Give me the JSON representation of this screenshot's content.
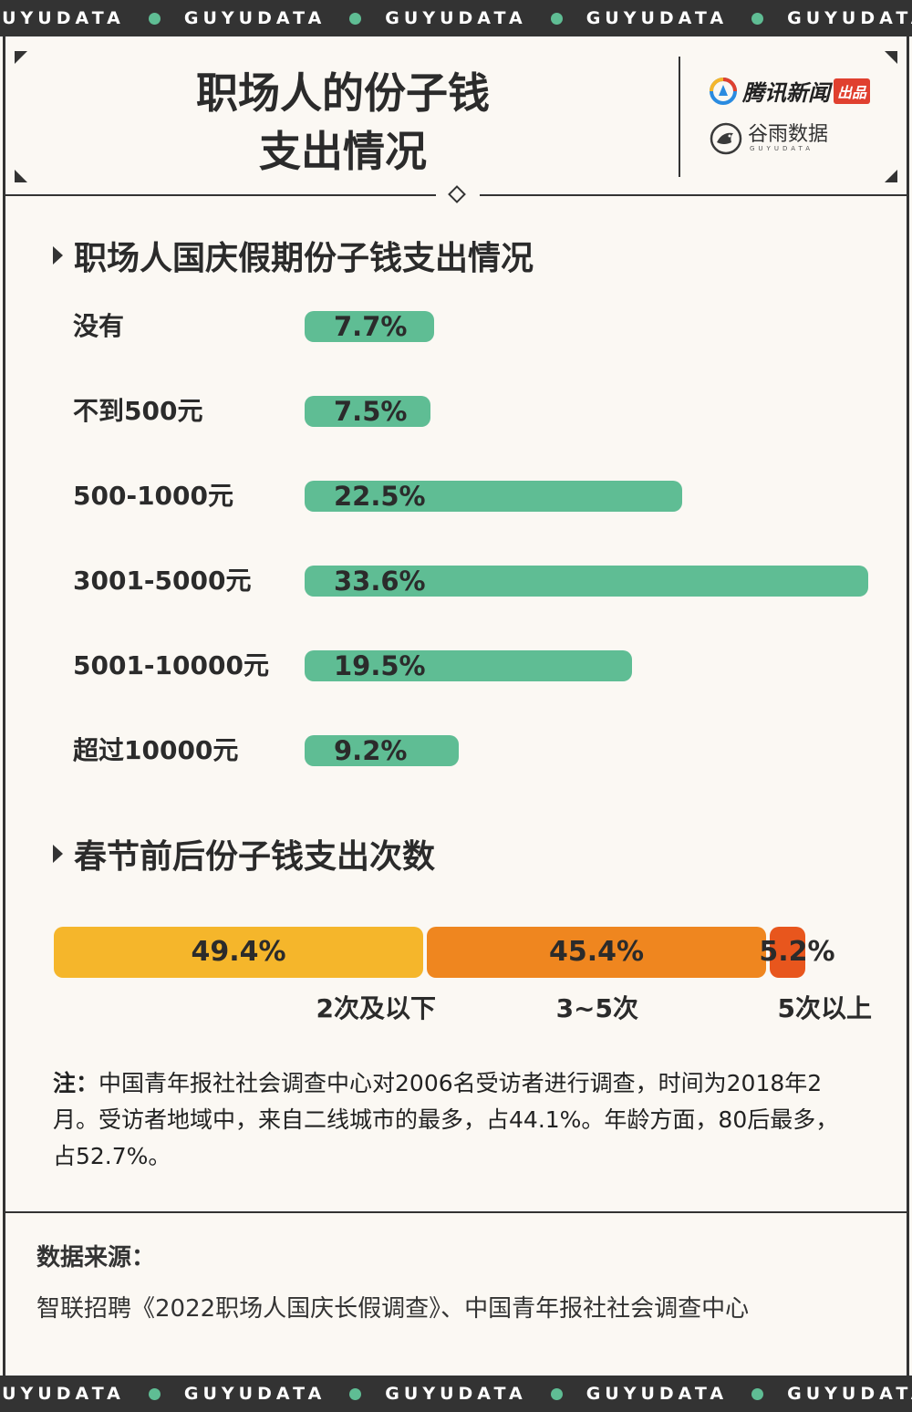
{
  "ribbon": {
    "words": [
      "GUYUDATA",
      "GUYUDATA",
      "GUYUDATA",
      "GUYUDATA",
      "GUYUDATA"
    ],
    "dot_color": "#5fbd94"
  },
  "header": {
    "title_line1": "职场人的份子钱",
    "title_line2": "支出情况",
    "brand1_name": "腾讯新闻",
    "brand1_tag": "出品",
    "brand2_name": "谷雨数据",
    "brand2_sub": "GUYUDATA"
  },
  "section1": {
    "title": "职场人国庆假期份子钱支出情况"
  },
  "section2": {
    "title": "春节前后份子钱支出次数"
  },
  "chart_data": [
    {
      "type": "bar",
      "title": "职场人国庆假期份子钱支出情况",
      "categories": [
        "没有",
        "不到500元",
        "500-1000元",
        "3001-5000元",
        "5001-10000元",
        "超过10000元"
      ],
      "values": [
        7.7,
        7.5,
        22.5,
        33.6,
        19.5,
        9.2
      ],
      "value_labels": [
        "7.7%",
        "7.5%",
        "22.5%",
        "33.6%",
        "19.5%",
        "9.2%"
      ],
      "color": "#5fbd94",
      "orientation": "horizontal"
    },
    {
      "type": "bar",
      "stacked": true,
      "title": "春节前后份子钱支出次数",
      "categories": [
        "2次及以下",
        "3~5次",
        "5次以上"
      ],
      "values": [
        49.4,
        45.4,
        5.2
      ],
      "value_labels": [
        "49.4%",
        "45.4%",
        "5.2%"
      ],
      "colors": [
        "#f5b62b",
        "#ef861f",
        "#e8561d"
      ]
    }
  ],
  "note": {
    "prefix": "注：",
    "text": "中国青年报社社会调查中心对2006名受访者进行调查，时间为2018年2月。受访者地域中，来自二线城市的最多，占44.1%。年龄方面，80后最多，占52.7%。"
  },
  "source": {
    "title": "数据来源：",
    "text": "智联招聘《2022职场人国庆长假调查》、中国青年报社社会调查中心"
  }
}
